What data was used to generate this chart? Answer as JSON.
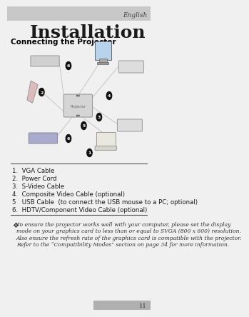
{
  "page_number": "11",
  "header_text": "English",
  "title": "Installation",
  "subtitle": "Connecting the Projector",
  "list_items": [
    "1.  VGA Cable",
    "2.  Power Cord",
    "3.  S-Video Cable",
    "4.  Composite Video Cable (optional)",
    "5   USB Cable  (to connect the USB mouse to a PC; optional)",
    "6.  HDTV/Component Video Cable (optional)"
  ],
  "note_bullet": "❖",
  "note_text": "To ensure the projector works well with your computer, please set the display\nmode on your graphics card to less than or equal to SVGA (800 x 600) resolution.\nAlso ensure the refresh rate of the graphics card is compatible with the projector.\nRefer to the “Compatibility Modes” section on page 34 for more information.",
  "bg_color": "#f0f0f0",
  "header_bar_color": "#c8c8c8",
  "title_color": "#1a1a1a",
  "subtitle_color": "#000000",
  "list_color": "#1a1a1a",
  "note_color": "#333333",
  "divider_color": "#555555",
  "footer_bg": "#b0b0b0"
}
